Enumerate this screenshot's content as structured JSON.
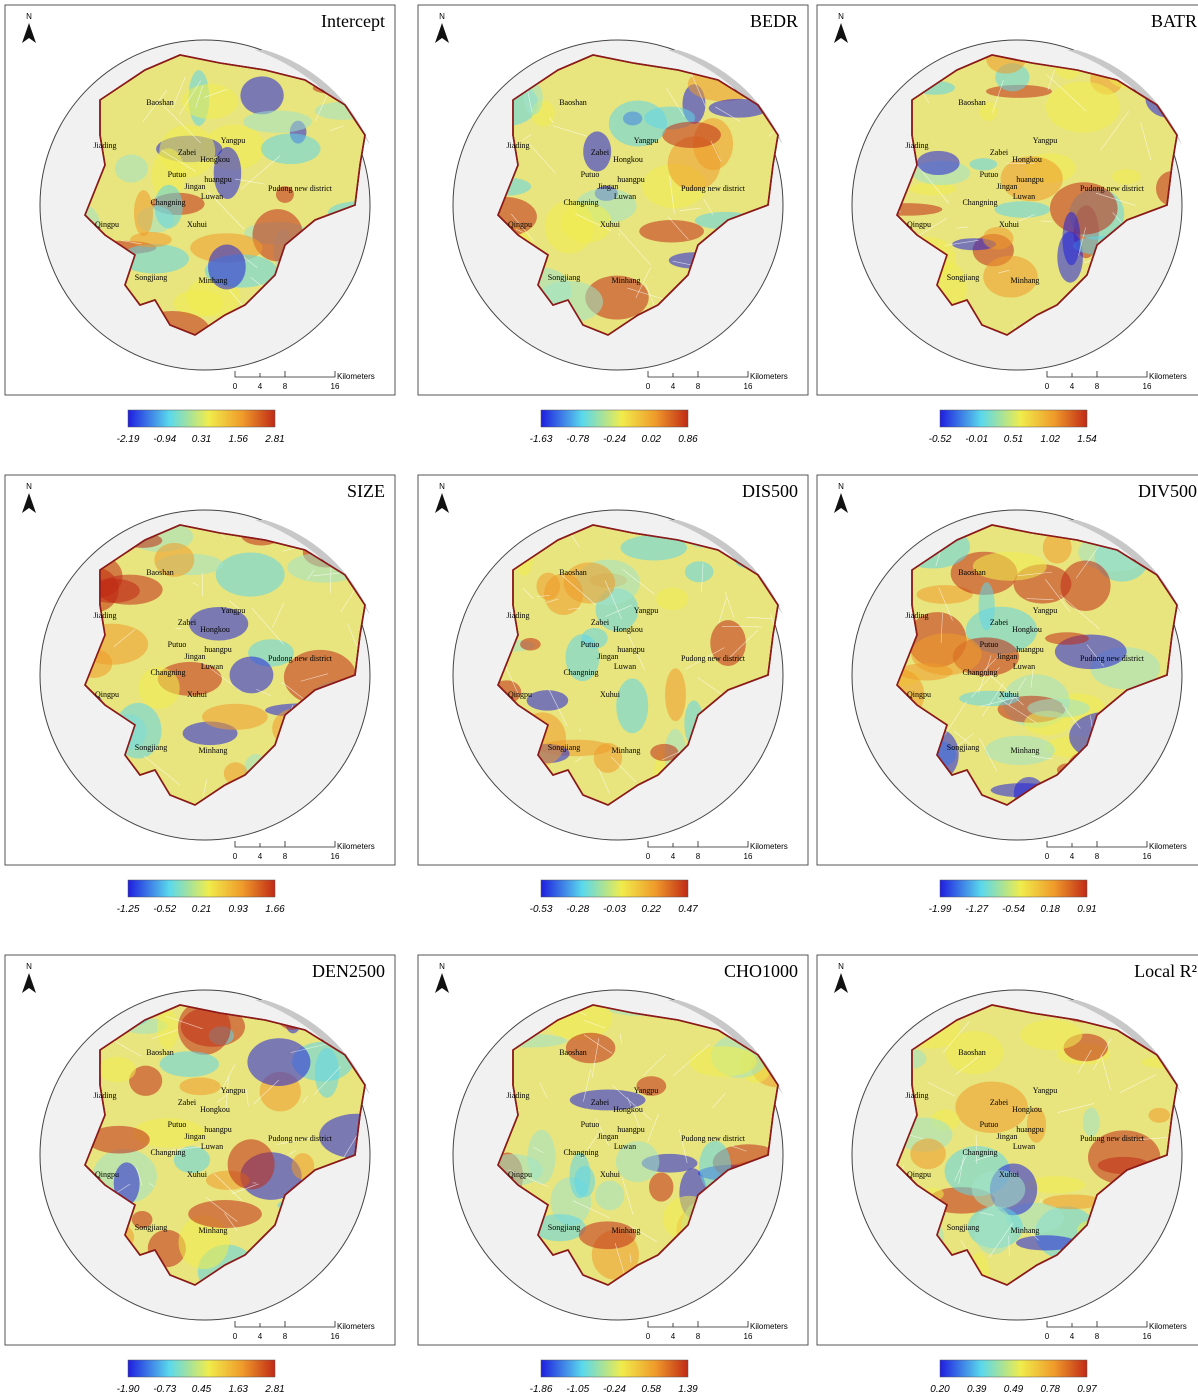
{
  "north": "N",
  "scale": {
    "unit": "Kilometers",
    "ticks": [
      "0",
      "4",
      "8",
      "16"
    ]
  },
  "districts": [
    "Baoshan",
    "Jiading",
    "Yangpu",
    "Zabei",
    "Hongkou",
    "Putuo",
    "huangpu",
    "Jingan",
    "Luwan",
    "Pudong new district",
    "Changning",
    "Qingpu",
    "Xuhui",
    "Songjiang",
    "Minhang"
  ],
  "panels": [
    {
      "title": "Intercept",
      "legend": [
        "-2.19",
        "-0.94",
        "0.31",
        "1.56",
        "2.81"
      ]
    },
    {
      "title": "BEDR",
      "legend": [
        "-1.63",
        "-0.78",
        "-0.24",
        "0.02",
        "0.86"
      ]
    },
    {
      "title": "BATR",
      "legend": [
        "-0.52",
        "-0.01",
        "0.51",
        "1.02",
        "1.54"
      ]
    },
    {
      "title": "SIZE",
      "legend": [
        "-1.25",
        "-0.52",
        "0.21",
        "0.93",
        "1.66"
      ]
    },
    {
      "title": "DIS500",
      "legend": [
        "-0.53",
        "-0.28",
        "-0.03",
        "0.22",
        "0.47"
      ]
    },
    {
      "title": "DIV500",
      "legend": [
        "-1.99",
        "-1.27",
        "-0.54",
        "0.18",
        "0.91"
      ]
    },
    {
      "title": "DEN2500",
      "legend": [
        "-1.90",
        "-0.73",
        "0.45",
        "1.63",
        "2.81"
      ]
    },
    {
      "title": "CHO1000",
      "legend": [
        "-1.86",
        "-1.05",
        "-0.24",
        "0.58",
        "1.39"
      ]
    },
    {
      "title": "Local R²",
      "legend": [
        "0.20",
        "0.39",
        "0.49",
        "0.78",
        "0.97"
      ]
    }
  ]
}
